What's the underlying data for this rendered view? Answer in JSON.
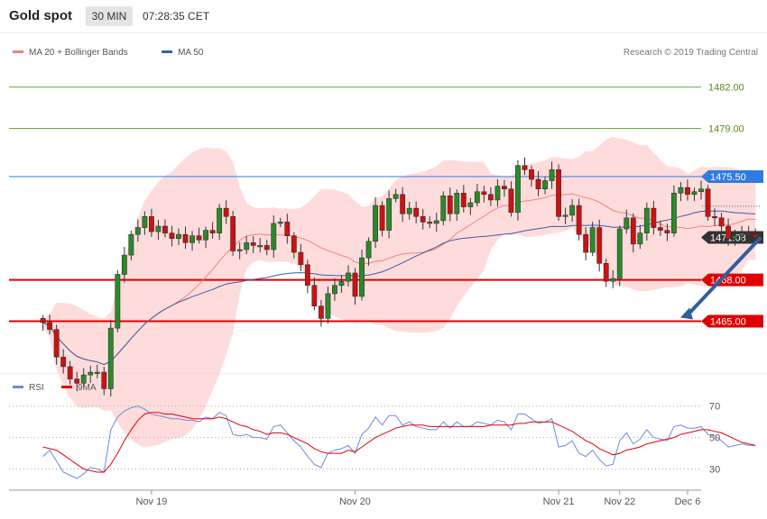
{
  "header": {
    "title": "Gold spot",
    "interval": "30 MIN",
    "time": "07:28:35 CET"
  },
  "colors": {
    "candle_up": "#cc0000",
    "candle_down": "#cc0000",
    "bollinger_fill": "#ffd0d0",
    "ma20": "#f08080",
    "ma50": "#3a5fa0",
    "support": "#e00000",
    "resistance": "#6aaa3a",
    "pivot": "#2f7be0",
    "last_price": "#333333",
    "rsi": "#6a8be0",
    "rsi_ma": "#e00000",
    "arrow": "#2f5f9f"
  },
  "chart_data": [
    {
      "type": "candlestick",
      "legend": [
        {
          "name": "MA 20 + Bollinger Bands",
          "color": "#f08080"
        },
        {
          "name": "MA 50",
          "color": "#3a5fa0"
        }
      ],
      "source": "Research © 2019 Trading Central",
      "ylim": [
        1461.5,
        1484.0
      ],
      "x_ticks": [
        {
          "label": "Nov 19",
          "x": 16
        },
        {
          "label": "Nov 20",
          "x": 46
        },
        {
          "label": "Nov 21",
          "x": 76
        },
        {
          "label": "Nov 22",
          "x": 85
        },
        {
          "label": "Dec 6",
          "x": 95
        }
      ],
      "xlim": [
        -5,
        97
      ],
      "price_lines": [
        {
          "value": 1482.0,
          "label": "1482.00",
          "kind": "resistance"
        },
        {
          "value": 1479.0,
          "label": "1479.00",
          "kind": "resistance"
        },
        {
          "value": 1475.5,
          "label": "1475.50",
          "kind": "pivot"
        },
        {
          "value": 1471.08,
          "label": "1471.08",
          "kind": "last"
        },
        {
          "value": 1468.0,
          "label": "1468.00",
          "kind": "support"
        },
        {
          "value": 1465.0,
          "label": "1465.00",
          "kind": "support"
        }
      ],
      "closes": [
        1464.9,
        1464.4,
        1462.4,
        1461.7,
        1460.8,
        1460.5,
        1461.1,
        1461.3,
        1461.3,
        1460.1,
        1464.5,
        1468.4,
        1469.8,
        1471.3,
        1471.8,
        1472.6,
        1471.5,
        1471.9,
        1471.4,
        1471.0,
        1471.3,
        1470.7,
        1471.2,
        1470.9,
        1471.6,
        1471.4,
        1473.2,
        1472.6,
        1470.1,
        1470.2,
        1470.7,
        1470.5,
        1470.5,
        1470.2,
        1472.1,
        1472.2,
        1471.2,
        1470.0,
        1469.1,
        1467.6,
        1466.1,
        1465.2,
        1467.0,
        1467.6,
        1467.9,
        1468.5,
        1466.8,
        1469.6,
        1470.8,
        1473.4,
        1471.6,
        1473.9,
        1474.2,
        1472.8,
        1473.2,
        1472.6,
        1472.2,
        1472.1,
        1472.3,
        1474.1,
        1472.8,
        1474.3,
        1473.3,
        1473.6,
        1474.4,
        1474.2,
        1473.8,
        1474.8,
        1474.6,
        1472.9,
        1476.3,
        1476.0,
        1475.3,
        1474.6,
        1475.2,
        1476.0,
        1472.6,
        1472.7,
        1473.4,
        1471.3,
        1470.0,
        1471.8,
        1469.2,
        1467.9,
        1468.1,
        1471.7,
        1472.5,
        1470.6,
        1471.4,
        1473.2,
        1471.8,
        1471.6,
        1471.4,
        1474.3,
        1474.7,
        1474.2,
        1474.4,
        1474.6,
        1472.6,
        1472.5,
        1471.9,
        1471.0,
        1471.2,
        1471.4,
        1471.3,
        1471.08
      ],
      "rsi_panel": {
        "legend": [
          {
            "name": "RSI",
            "color": "#6a8be0"
          },
          {
            "name": "9MA",
            "color": "#e00000"
          }
        ],
        "ticks": [
          {
            "label": "70",
            "value": 70
          },
          {
            "label": "50",
            "value": 50
          },
          {
            "label": "30",
            "value": 30
          }
        ],
        "ylim": [
          20,
          75
        ],
        "rsi": [
          38,
          42,
          35,
          28,
          26,
          24,
          27,
          31,
          30,
          28,
          55,
          63,
          67,
          69,
          70,
          68,
          65,
          64,
          63,
          62,
          62,
          61,
          61,
          60,
          63,
          62,
          66,
          64,
          52,
          51,
          52,
          50,
          50,
          49,
          57,
          58,
          53,
          48,
          44,
          38,
          33,
          31,
          40,
          42,
          43,
          45,
          40,
          52,
          56,
          63,
          58,
          64,
          64,
          58,
          60,
          57,
          56,
          55,
          55,
          60,
          56,
          60,
          57,
          57,
          60,
          59,
          58,
          61,
          60,
          55,
          65,
          65,
          62,
          59,
          60,
          62,
          44,
          45,
          48,
          40,
          38,
          42,
          36,
          32,
          33,
          48,
          53,
          46,
          49,
          55,
          50,
          49,
          48,
          57,
          58,
          56,
          56,
          57,
          52,
          51,
          48,
          44,
          45,
          46,
          45,
          45
        ],
        "ma": [
          44,
          43,
          42,
          39,
          36,
          33,
          30,
          29,
          28,
          28,
          33,
          40,
          48,
          55,
          61,
          65,
          66,
          66,
          65,
          65,
          64,
          63,
          62,
          62,
          62,
          62,
          63,
          62,
          60,
          58,
          57,
          55,
          54,
          52,
          53,
          53,
          52,
          50,
          48,
          46,
          43,
          41,
          40,
          40,
          40,
          42,
          41,
          44,
          47,
          50,
          52,
          54,
          56,
          57,
          58,
          58,
          58,
          57,
          57,
          57,
          57,
          57,
          57,
          57,
          57,
          57,
          58,
          58,
          58,
          58,
          59,
          59,
          60,
          60,
          60,
          60,
          58,
          56,
          54,
          51,
          48,
          46,
          43,
          41,
          39,
          40,
          42,
          43,
          44,
          46,
          47,
          48,
          49,
          50,
          52,
          53,
          54,
          55,
          55,
          54,
          53,
          51,
          49,
          47,
          46,
          45
        ]
      }
    }
  ]
}
